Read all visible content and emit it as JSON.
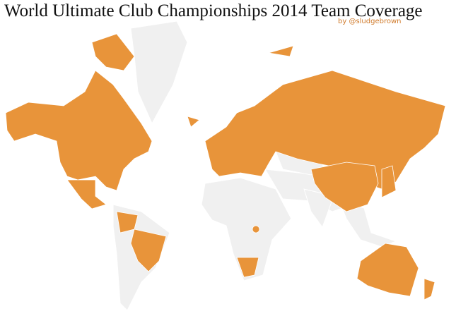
{
  "header": {
    "title": "World Ultimate Club Championships 2014 Team Coverage",
    "byline": "by @sludgebrown"
  }
}
